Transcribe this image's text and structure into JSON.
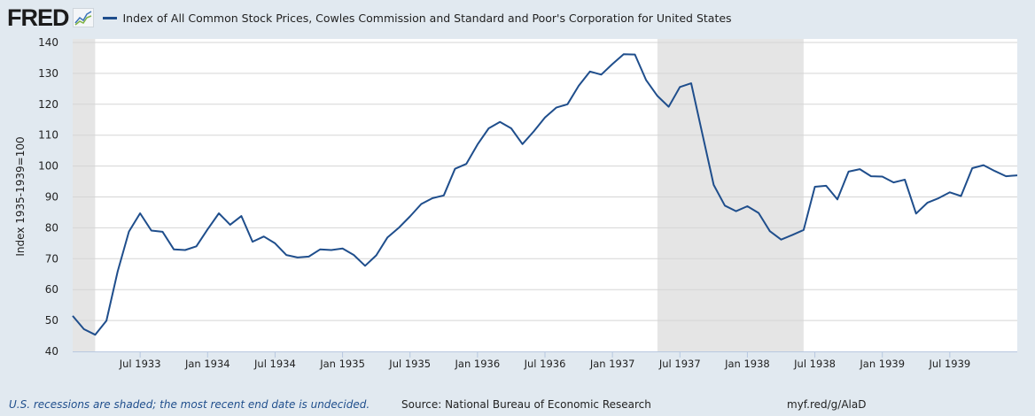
{
  "header": {
    "logo": "FRED",
    "legend": "Index of All Common Stock Prices, Cowles Commission and Standard and Poor's Corporation for United States"
  },
  "footer": {
    "note": "U.S. recessions are shaded; the most recent end date is undecided.",
    "source": "Source: National Bureau of Economic Research",
    "link": "myf.red/g/AlaD"
  },
  "colors": {
    "series": "#1f4e8c",
    "recession": "#e5e5e5",
    "background": "#e1e9f0",
    "grid": "#d5d5d5"
  },
  "chart_data": {
    "type": "line",
    "title": "",
    "xlabel": "",
    "ylabel": "Index 1935-1939=100",
    "ylim": [
      40,
      140
    ],
    "yticks": [
      40,
      50,
      60,
      70,
      80,
      90,
      100,
      110,
      120,
      130,
      140
    ],
    "xlim": [
      "1933-01",
      "1940-01"
    ],
    "xticks": [
      {
        "date": "1933-07",
        "label": "Jul 1933"
      },
      {
        "date": "1934-01",
        "label": "Jan 1934"
      },
      {
        "date": "1934-07",
        "label": "Jul 1934"
      },
      {
        "date": "1935-01",
        "label": "Jan 1935"
      },
      {
        "date": "1935-07",
        "label": "Jul 1935"
      },
      {
        "date": "1936-01",
        "label": "Jan 1936"
      },
      {
        "date": "1936-07",
        "label": "Jul 1936"
      },
      {
        "date": "1937-01",
        "label": "Jan 1937"
      },
      {
        "date": "1937-07",
        "label": "Jul 1937"
      },
      {
        "date": "1938-01",
        "label": "Jan 1938"
      },
      {
        "date": "1938-07",
        "label": "Jul 1938"
      },
      {
        "date": "1939-01",
        "label": "Jan 1939"
      },
      {
        "date": "1939-07",
        "label": "Jul 1939"
      }
    ],
    "grid": true,
    "recessions": [
      [
        "1933-01",
        "1933-03"
      ],
      [
        "1937-05",
        "1938-06"
      ]
    ],
    "series": [
      {
        "x": [
          "1933-01",
          "1933-02",
          "1933-03",
          "1933-04",
          "1933-05",
          "1933-06",
          "1933-07",
          "1933-08",
          "1933-09",
          "1933-10",
          "1933-11",
          "1933-12",
          "1934-01",
          "1934-02",
          "1934-03",
          "1934-04",
          "1934-05",
          "1934-06",
          "1934-07",
          "1934-08",
          "1934-09",
          "1934-10",
          "1934-11",
          "1934-12",
          "1935-01",
          "1935-02",
          "1935-03",
          "1935-04",
          "1935-05",
          "1935-06",
          "1935-07",
          "1935-08",
          "1935-09",
          "1935-10",
          "1935-11",
          "1935-12",
          "1936-01",
          "1936-02",
          "1936-03",
          "1936-04",
          "1936-05",
          "1936-06",
          "1936-07",
          "1936-08",
          "1936-09",
          "1936-10",
          "1936-11",
          "1936-12",
          "1937-01",
          "1937-02",
          "1937-03",
          "1937-04",
          "1937-05",
          "1937-06",
          "1937-07",
          "1937-08",
          "1937-09",
          "1937-10",
          "1937-11",
          "1937-12",
          "1938-01",
          "1938-02",
          "1938-03",
          "1938-04",
          "1938-05",
          "1938-06",
          "1938-07",
          "1938-08",
          "1938-09",
          "1938-10",
          "1938-11",
          "1938-12",
          "1939-01",
          "1939-02",
          "1939-03",
          "1939-04",
          "1939-05",
          "1939-06",
          "1939-07",
          "1939-08",
          "1939-09",
          "1939-10",
          "1939-11",
          "1939-12",
          "1940-01"
        ],
        "values": [
          51.5,
          47.2,
          45.4,
          49.9,
          65.9,
          78.8,
          84.7,
          79.1,
          78.7,
          73.0,
          72.8,
          74.0,
          79.5,
          84.7,
          81.0,
          83.8,
          75.5,
          77.2,
          75.0,
          71.2,
          70.4,
          70.7,
          73.0,
          72.8,
          73.3,
          71.2,
          67.7,
          71.1,
          76.9,
          80.0,
          83.7,
          87.7,
          89.6,
          90.5,
          99.1,
          100.7,
          107.0,
          112.2,
          114.3,
          112.2,
          107.1,
          111.2,
          115.7,
          118.9,
          120.0,
          126.0,
          130.6,
          129.6,
          133.0,
          136.2,
          136.1,
          127.8,
          122.7,
          119.2,
          125.6,
          126.8,
          110.3,
          93.9,
          87.2,
          85.4,
          87.0,
          84.8,
          78.9,
          76.2,
          77.7,
          79.3,
          93.3,
          93.6,
          89.2,
          98.2,
          99.0,
          96.7,
          96.6,
          94.7,
          95.6,
          84.6,
          88.1,
          89.6,
          91.5,
          90.3,
          99.3,
          100.3,
          98.4,
          96.7,
          97.0
        ]
      }
    ]
  }
}
